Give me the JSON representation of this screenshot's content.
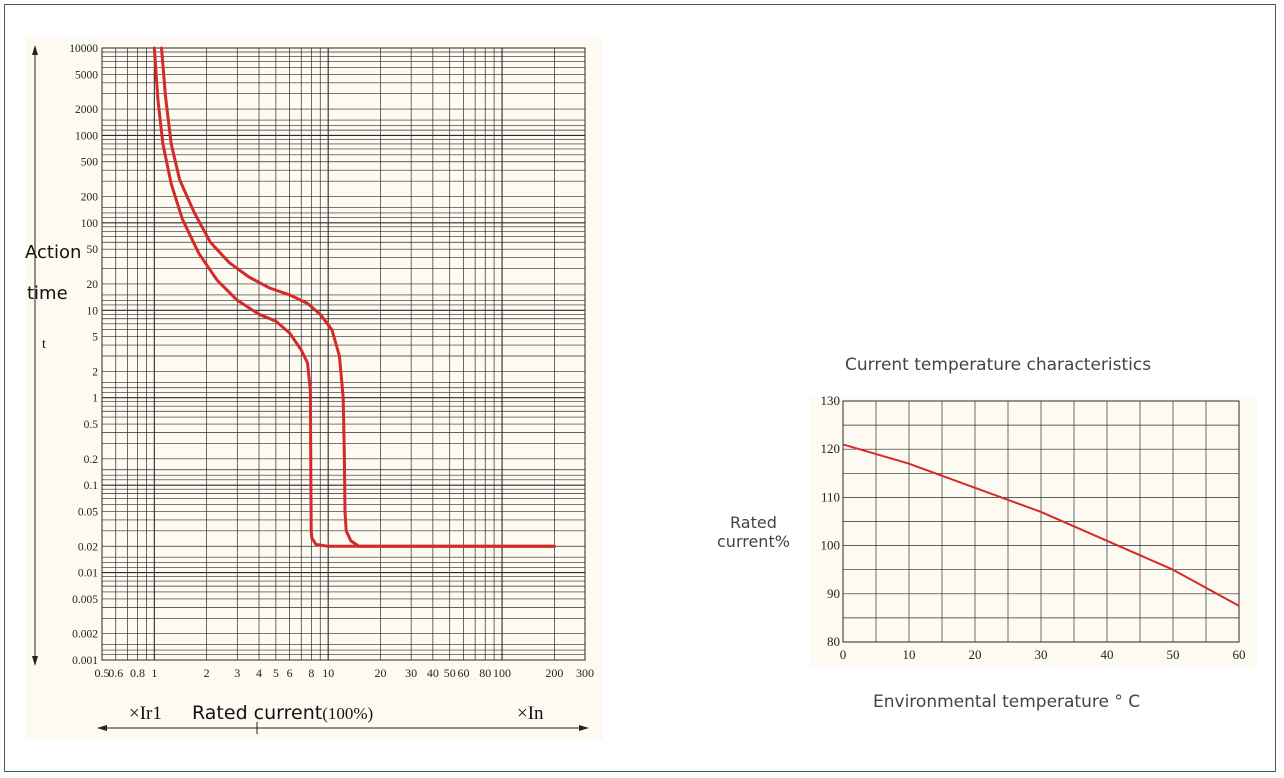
{
  "colors": {
    "curve": "#d42a2a",
    "grid": "#2a2a2a",
    "paper": "#fdfbf1",
    "text": "#222222"
  },
  "chart_data": [
    {
      "type": "line",
      "scale": "log-log",
      "title": "",
      "ylabel_lines": [
        "Action",
        "time"
      ],
      "ylabel_symbol": "t",
      "xlabel_main": "Rated current",
      "xlabel_suffix": "(100%)",
      "x_unit_left": "×Ir1",
      "x_unit_right": "×In",
      "xlim": [
        0.5,
        300
      ],
      "ylim": [
        0.001,
        10000
      ],
      "x_tick_labels": [
        "0.5",
        "0.6",
        "0.8",
        "1",
        "2",
        "3",
        "4",
        "5",
        "6",
        "8",
        "10",
        "20",
        "30",
        "40",
        "50",
        "60",
        "80",
        "100",
        "200",
        "300"
      ],
      "y_tick_labels": [
        "10000",
        "5000",
        "2000",
        "1000",
        "500",
        "200",
        "100",
        "50",
        "20",
        "10",
        "5",
        "2",
        "1",
        "0.5",
        "0.2",
        "0.1",
        "0.05",
        "0.02",
        "0.01",
        "0.005",
        "0.002",
        "0.001"
      ],
      "series": [
        {
          "x": [
            1.0,
            1.05,
            1.12,
            1.25,
            1.45,
            1.8,
            2.3,
            3.0,
            4.0,
            5.0,
            6.0,
            7.0,
            7.6,
            7.9,
            7.95,
            7.98,
            8.05,
            8.5,
            10,
            20,
            50,
            100,
            200
          ],
          "y": [
            10000,
            2500,
            800,
            280,
            110,
            45,
            22,
            13,
            9,
            7.5,
            5.5,
            3.5,
            2.5,
            1.2,
            0.1,
            0.03,
            0.025,
            0.021,
            0.02,
            0.02,
            0.02,
            0.02,
            0.02
          ]
        },
        {
          "x": [
            1.1,
            1.16,
            1.25,
            1.4,
            1.7,
            2.1,
            2.7,
            3.5,
            4.6,
            6.0,
            7.6,
            9.0,
            10.5,
            11.6,
            12.2,
            12.4,
            12.5,
            12.7,
            13.5,
            15,
            20,
            50,
            100,
            200
          ],
          "y": [
            10000,
            2800,
            800,
            310,
            130,
            60,
            35,
            24,
            18,
            15,
            12,
            9,
            6,
            3,
            1,
            0.2,
            0.05,
            0.03,
            0.023,
            0.02,
            0.02,
            0.02,
            0.02,
            0.02
          ]
        }
      ]
    },
    {
      "type": "line",
      "title": "Current temperature characteristics",
      "ylabel_lines": [
        "Rated",
        "current%"
      ],
      "xlabel": "Environmental temperature ° C",
      "xlim": [
        0,
        60
      ],
      "ylim": [
        80,
        130
      ],
      "x_tick_labels": [
        "0",
        "10",
        "20",
        "30",
        "40",
        "50",
        "60"
      ],
      "y_tick_labels": [
        "130",
        "120",
        "110",
        "100",
        "90",
        "80"
      ],
      "series": [
        {
          "x": [
            0,
            10,
            20,
            30,
            40,
            50,
            60
          ],
          "y": [
            121,
            117,
            112,
            107,
            101,
            95,
            87.5
          ]
        }
      ]
    }
  ]
}
